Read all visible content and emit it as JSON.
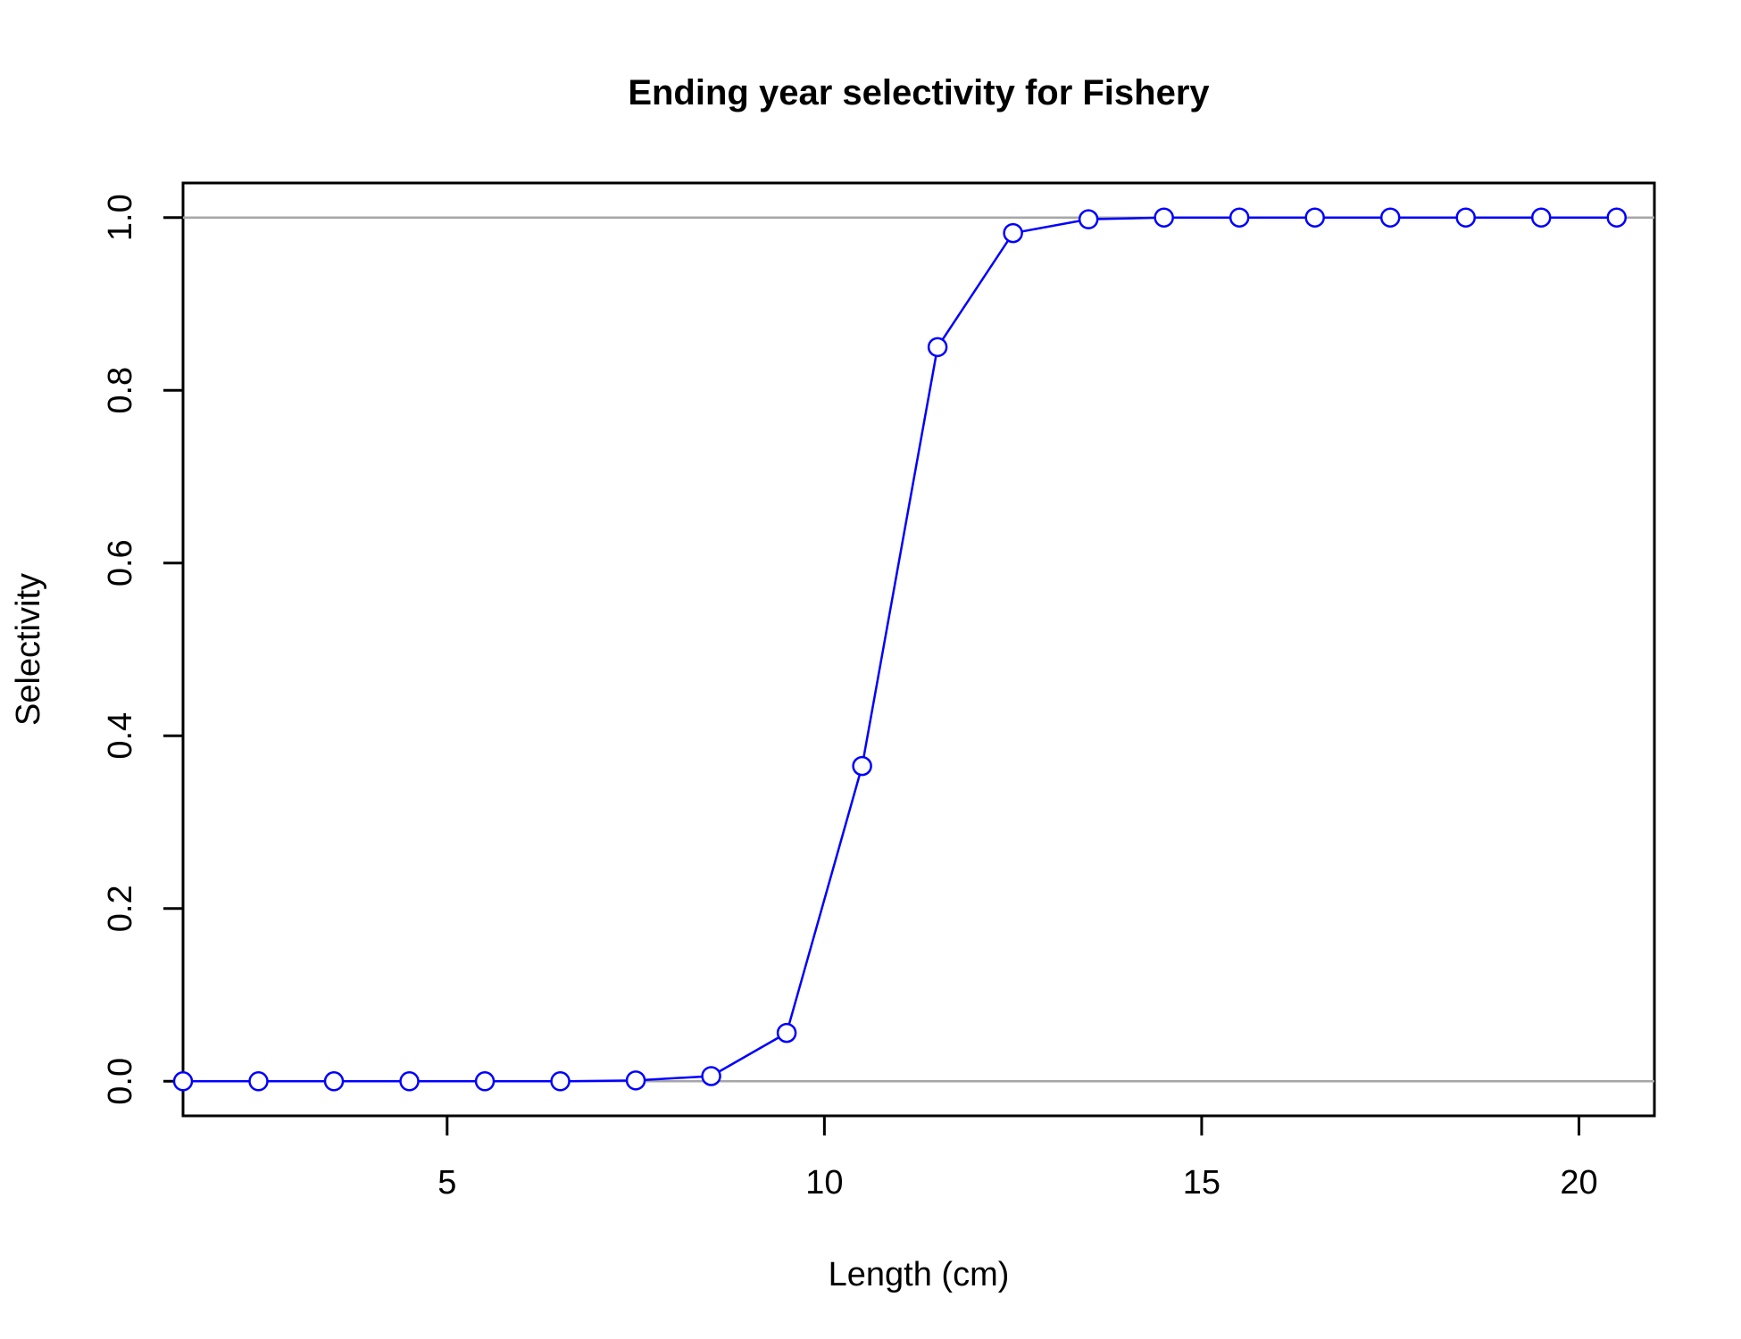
{
  "chart_data": {
    "type": "line",
    "title": "Ending year selectivity for Fishery",
    "xlabel": "Length (cm)",
    "ylabel": "Selectivity",
    "xlim": [
      1.5,
      21.0
    ],
    "ylim": [
      -0.04,
      1.04
    ],
    "x_ticks": [
      5,
      10,
      15,
      20
    ],
    "x_tick_labels": [
      "5",
      "10",
      "15",
      "20"
    ],
    "y_ticks": [
      0.0,
      0.2,
      0.4,
      0.6,
      0.8,
      1.0
    ],
    "y_tick_labels": [
      "0.0",
      "0.2",
      "0.4",
      "0.6",
      "0.8",
      "1.0"
    ],
    "reference_lines": [
      0,
      1
    ],
    "grid": false,
    "legend": "none",
    "series": [
      {
        "color": "#0000ff",
        "marker": "open-circle",
        "x": [
          1.5,
          2.5,
          3.5,
          4.5,
          5.5,
          6.5,
          7.5,
          8.5,
          9.5,
          10.5,
          11.5,
          12.5,
          13.5,
          14.5,
          15.5,
          16.5,
          17.5,
          18.5,
          19.5,
          20.5
        ],
        "values": [
          0.0,
          0.0,
          0.0,
          0.0,
          0.0,
          0.0,
          0.001,
          0.006,
          0.056,
          0.365,
          0.85,
          0.982,
          0.998,
          1.0,
          1.0,
          1.0,
          1.0,
          1.0,
          1.0,
          1.0
        ]
      }
    ]
  }
}
